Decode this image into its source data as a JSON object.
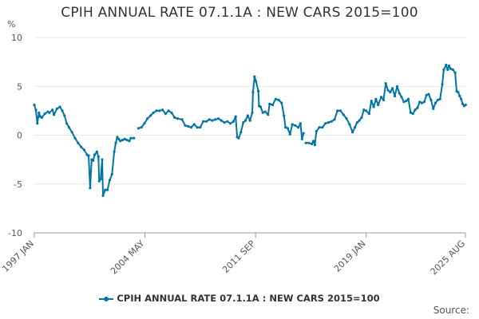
{
  "chart_data": {
    "type": "line",
    "title": "CPIH ANNUAL RATE 07.1.1A : NEW CARS 2015=100",
    "ylabel": "%",
    "xlabel": "",
    "ylim": [
      -10,
      10
    ],
    "y_ticks": [
      "10",
      "5",
      "0",
      "-5",
      "-10"
    ],
    "x_range": [
      1997.0,
      2025.583
    ],
    "x_ticks": [
      {
        "label": "1997 JAN",
        "x": 1997.0
      },
      {
        "label": "2004 MAY",
        "x": 2004.333
      },
      {
        "label": "2011 SEP",
        "x": 2011.667
      },
      {
        "label": "2019 JAN",
        "x": 2019.0
      },
      {
        "label": "2025 AUG",
        "x": 2025.583
      }
    ],
    "grid": true,
    "legend_position": "bottom",
    "series": [
      {
        "name": "CPIH ANNUAL RATE 07.1.1A : NEW CARS 2015=100",
        "color": "#0075a3",
        "segments": [
          [
            [
              1997.0,
              3.1
            ],
            [
              1997.1,
              2.6
            ],
            [
              1997.2,
              1.2
            ],
            [
              1997.3,
              2.3
            ],
            [
              1997.4,
              1.9
            ],
            [
              1997.5,
              1.8
            ],
            [
              1997.7,
              2.2
            ],
            [
              1997.9,
              2.4
            ],
            [
              1998.0,
              2.3
            ],
            [
              1998.2,
              2.6
            ],
            [
              1998.3,
              2.1
            ],
            [
              1998.5,
              2.7
            ],
            [
              1998.7,
              2.9
            ],
            [
              1998.85,
              2.5
            ],
            [
              1999.0,
              2.0
            ],
            [
              1999.15,
              1.2
            ],
            [
              1999.3,
              0.8
            ],
            [
              1999.5,
              0.3
            ],
            [
              1999.7,
              -0.3
            ],
            [
              1999.9,
              -0.8
            ],
            [
              2000.1,
              -1.2
            ],
            [
              2000.3,
              -1.5
            ],
            [
              2000.5,
              -2.0
            ],
            [
              2000.6,
              -2.1
            ],
            [
              2000.7,
              -5.4
            ],
            [
              2000.8,
              -2.5
            ],
            [
              2000.9,
              -2.6
            ],
            [
              2001.0,
              -2.0
            ],
            [
              2001.15,
              -1.7
            ],
            [
              2001.25,
              -2.2
            ],
            [
              2001.3,
              -4.7
            ],
            [
              2001.4,
              -4.5
            ],
            [
              2001.5,
              -2.5
            ],
            [
              2001.55,
              -6.2
            ],
            [
              2001.7,
              -5.6
            ],
            [
              2001.85,
              -5.6
            ],
            [
              2002.0,
              -4.6
            ],
            [
              2002.15,
              -4.0
            ],
            [
              2002.3,
              -1.7
            ],
            [
              2002.4,
              -0.8
            ],
            [
              2002.5,
              -0.2
            ],
            [
              2002.6,
              -0.4
            ],
            [
              2002.7,
              -0.6
            ],
            [
              2002.85,
              -0.5
            ],
            [
              2003.0,
              -0.4
            ],
            [
              2003.15,
              -0.5
            ],
            [
              2003.3,
              -0.6
            ],
            [
              2003.4,
              -0.3
            ],
            [
              2003.6,
              -0.3
            ]
          ],
          [
            [
              2003.9,
              0.7
            ],
            [
              2004.1,
              0.8
            ],
            [
              2004.3,
              1.2
            ],
            [
              2004.5,
              1.7
            ],
            [
              2004.7,
              2.0
            ],
            [
              2004.9,
              2.3
            ],
            [
              2005.1,
              2.5
            ],
            [
              2005.3,
              2.5
            ],
            [
              2005.5,
              2.6
            ],
            [
              2005.7,
              2.2
            ],
            [
              2005.9,
              2.5
            ],
            [
              2006.1,
              2.3
            ],
            [
              2006.3,
              1.8
            ],
            [
              2006.5,
              1.7
            ],
            [
              2006.8,
              1.6
            ],
            [
              2007.0,
              1.0
            ],
            [
              2007.2,
              0.9
            ],
            [
              2007.4,
              0.8
            ],
            [
              2007.6,
              1.1
            ],
            [
              2007.8,
              0.8
            ],
            [
              2008.0,
              0.8
            ],
            [
              2008.2,
              1.4
            ],
            [
              2008.4,
              1.4
            ],
            [
              2008.6,
              1.6
            ],
            [
              2008.8,
              1.5
            ],
            [
              2009.0,
              1.6
            ],
            [
              2009.2,
              1.7
            ],
            [
              2009.4,
              1.5
            ],
            [
              2009.6,
              1.3
            ],
            [
              2009.8,
              1.4
            ],
            [
              2010.0,
              1.2
            ],
            [
              2010.2,
              1.4
            ],
            [
              2010.35,
              1.9
            ],
            [
              2010.45,
              -0.2
            ],
            [
              2010.55,
              -0.3
            ],
            [
              2010.7,
              0.3
            ],
            [
              2010.85,
              1.3
            ],
            [
              2011.0,
              1.5
            ],
            [
              2011.15,
              2.0
            ],
            [
              2011.3,
              1.5
            ],
            [
              2011.45,
              2.3
            ],
            [
              2011.5,
              4.4
            ],
            [
              2011.6,
              6.0
            ],
            [
              2011.7,
              5.5
            ],
            [
              2011.85,
              4.5
            ],
            [
              2011.9,
              3.0
            ],
            [
              2012.0,
              2.9
            ],
            [
              2012.15,
              2.3
            ],
            [
              2012.3,
              2.4
            ],
            [
              2012.5,
              2.1
            ],
            [
              2012.6,
              3.2
            ],
            [
              2012.8,
              3.1
            ],
            [
              2013.0,
              3.7
            ],
            [
              2013.2,
              3.6
            ],
            [
              2013.4,
              3.3
            ],
            [
              2013.55,
              2.0
            ],
            [
              2013.65,
              0.8
            ],
            [
              2013.8,
              0.7
            ],
            [
              2013.95,
              0.1
            ],
            [
              2014.1,
              1.1
            ],
            [
              2014.3,
              1.0
            ],
            [
              2014.5,
              0.8
            ],
            [
              2014.65,
              1.2
            ],
            [
              2014.75,
              -0.4
            ],
            [
              2014.85,
              0.2
            ]
          ],
          [
            [
              2015.0,
              -0.8
            ],
            [
              2015.2,
              -0.8
            ],
            [
              2015.4,
              -0.9
            ],
            [
              2015.5,
              -0.6
            ],
            [
              2015.6,
              -1.0
            ],
            [
              2015.7,
              0.4
            ],
            [
              2015.9,
              0.8
            ],
            [
              2016.1,
              0.8
            ],
            [
              2016.3,
              1.2
            ],
            [
              2016.5,
              1.3
            ],
            [
              2016.7,
              1.4
            ],
            [
              2016.9,
              1.6
            ],
            [
              2017.1,
              2.5
            ],
            [
              2017.3,
              2.5
            ],
            [
              2017.5,
              2.1
            ],
            [
              2017.7,
              1.7
            ],
            [
              2017.9,
              1.1
            ],
            [
              2018.1,
              0.3
            ],
            [
              2018.25,
              0.8
            ],
            [
              2018.4,
              1.3
            ],
            [
              2018.55,
              1.5
            ],
            [
              2018.7,
              1.8
            ],
            [
              2018.85,
              2.6
            ],
            [
              2019.0,
              2.5
            ],
            [
              2019.2,
              2.2
            ],
            [
              2019.35,
              3.5
            ],
            [
              2019.5,
              2.9
            ],
            [
              2019.65,
              3.7
            ],
            [
              2019.8,
              3.1
            ],
            [
              2020.0,
              3.9
            ],
            [
              2020.15,
              3.6
            ],
            [
              2020.3,
              5.3
            ],
            [
              2020.45,
              4.6
            ],
            [
              2020.6,
              4.4
            ],
            [
              2020.75,
              4.8
            ],
            [
              2020.9,
              4.0
            ],
            [
              2021.05,
              5.0
            ],
            [
              2021.2,
              4.3
            ],
            [
              2021.35,
              3.9
            ],
            [
              2021.5,
              3.4
            ],
            [
              2021.65,
              3.5
            ],
            [
              2021.8,
              3.7
            ],
            [
              2021.95,
              2.3
            ],
            [
              2022.1,
              2.2
            ],
            [
              2022.25,
              2.6
            ],
            [
              2022.4,
              2.8
            ],
            [
              2022.55,
              3.4
            ],
            [
              2022.7,
              3.3
            ],
            [
              2022.85,
              3.4
            ],
            [
              2023.0,
              4.1
            ],
            [
              2023.15,
              4.2
            ],
            [
              2023.3,
              3.6
            ],
            [
              2023.45,
              2.7
            ],
            [
              2023.6,
              3.3
            ],
            [
              2023.75,
              3.6
            ],
            [
              2023.9,
              3.7
            ],
            [
              2024.05,
              5.2
            ],
            [
              2024.15,
              6.7
            ],
            [
              2024.3,
              7.2
            ],
            [
              2024.4,
              6.7
            ],
            [
              2024.5,
              7.1
            ],
            [
              2024.6,
              6.8
            ],
            [
              2024.75,
              6.7
            ],
            [
              2024.9,
              6.4
            ],
            [
              2025.0,
              4.5
            ],
            [
              2025.1,
              4.4
            ],
            [
              2025.2,
              4.0
            ],
            [
              2025.3,
              3.7
            ],
            [
              2025.4,
              3.2
            ],
            [
              2025.5,
              3.0
            ],
            [
              2025.6,
              3.1
            ]
          ]
        ]
      }
    ]
  },
  "legend": {
    "label": "CPIH ANNUAL RATE 07.1.1A : NEW CARS 2015=100"
  },
  "source": {
    "label": "Source:"
  }
}
